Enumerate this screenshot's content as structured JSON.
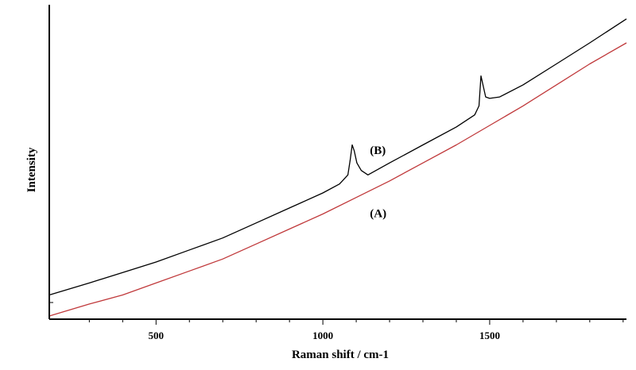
{
  "chart_data": {
    "type": "line",
    "xlabel": "Raman shift / cm-1",
    "ylabel": "Intensity",
    "xlim": [
      180,
      1910
    ],
    "ylim": [
      0,
      100
    ],
    "xticks": [
      500,
      1000,
      1500
    ],
    "yticks_shown": false,
    "grid": false,
    "colors": {
      "A": "#c0393b",
      "B": "#000000"
    },
    "series": [
      {
        "key": "A",
        "label": "(A)",
        "x": [
          180,
          300,
          400,
          500,
          600,
          700,
          800,
          900,
          1000,
          1100,
          1200,
          1300,
          1400,
          1500,
          1600,
          1700,
          1800,
          1910
        ],
        "y": [
          0,
          4,
          7,
          11,
          15,
          19,
          24,
          29,
          34,
          39.5,
          45,
          51,
          57,
          63.5,
          70,
          77,
          84,
          91
        ]
      },
      {
        "key": "B",
        "label": "(B)",
        "x": [
          180,
          300,
          400,
          500,
          600,
          700,
          800,
          900,
          1000,
          1050,
          1075,
          1082,
          1088,
          1094,
          1102,
          1115,
          1135,
          1200,
          1300,
          1400,
          1455,
          1468,
          1474,
          1480,
          1488,
          1500,
          1530,
          1600,
          1700,
          1800,
          1910
        ],
        "y": [
          7,
          11,
          14.5,
          18,
          22,
          26,
          31,
          36,
          41,
          44,
          47,
          52,
          57,
          55,
          51,
          48.5,
          47,
          51,
          57,
          63,
          67,
          70,
          80,
          77,
          73,
          72.5,
          73,
          77,
          84,
          91,
          99
        ]
      }
    ],
    "annotations": [
      {
        "text": "(B)",
        "x": 1160,
        "y": 54
      },
      {
        "text": "(A)",
        "x": 1160,
        "y": 33
      }
    ]
  }
}
